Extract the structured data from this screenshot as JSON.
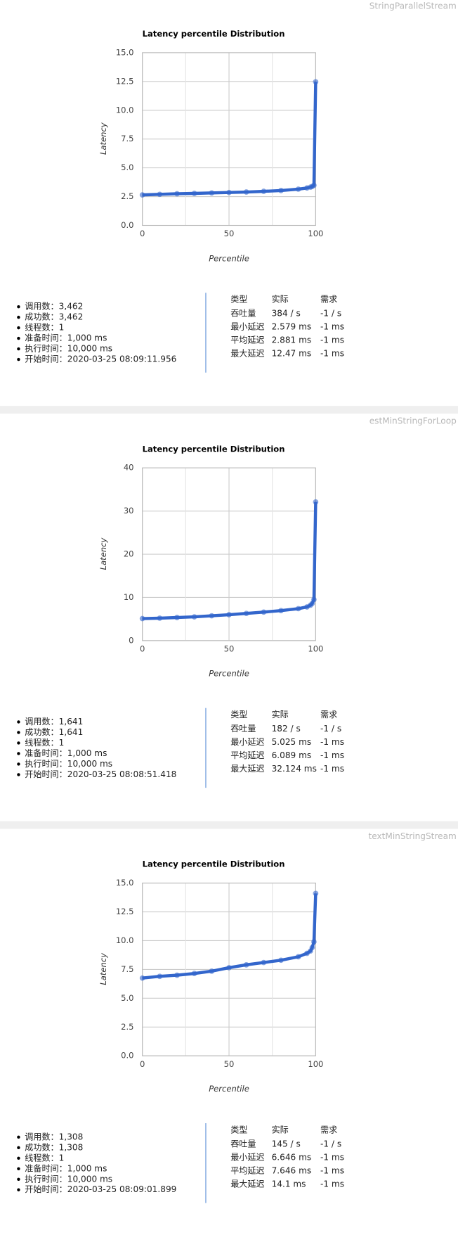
{
  "panels": [
    {
      "name": "StringParallelStream",
      "stats": [
        "调用数：3,462",
        "成功数：3,462",
        "线程数：1",
        "准备时间：1,000 ms",
        "执行时间：10,000 ms",
        "开始时间：2020-03-25 08:09:11.956"
      ],
      "table": {
        "header": [
          "类型",
          "实际",
          "需求"
        ],
        "rows": [
          [
            "吞吐量",
            "384 / s",
            "-1 / s"
          ],
          [
            "最小延迟",
            "2.579 ms",
            "-1 ms"
          ],
          [
            "平均延迟",
            "2.881 ms",
            "-1 ms"
          ],
          [
            "最大延迟",
            "12.47 ms",
            "-1 ms"
          ]
        ]
      }
    },
    {
      "name": "estMinStringForLoop",
      "stats": [
        "调用数：1,641",
        "成功数：1,641",
        "线程数：1",
        "准备时间：1,000 ms",
        "执行时间：10,000 ms",
        "开始时间：2020-03-25 08:08:51.418"
      ],
      "table": {
        "header": [
          "类型",
          "实际",
          "需求"
        ],
        "rows": [
          [
            "吞吐量",
            "182 / s",
            "-1 / s"
          ],
          [
            "最小延迟",
            "5.025 ms",
            "-1 ms"
          ],
          [
            "平均延迟",
            "6.089 ms",
            "-1 ms"
          ],
          [
            "最大延迟",
            "32.124 ms",
            "-1 ms"
          ]
        ]
      }
    },
    {
      "name": "textMinStringStream",
      "stats": [
        "调用数：1,308",
        "成功数：1,308",
        "线程数：1",
        "准备时间：1,000 ms",
        "执行时间：10,000 ms",
        "开始时间：2020-03-25 08:09:01.899"
      ],
      "table": {
        "header": [
          "类型",
          "实际",
          "需求"
        ],
        "rows": [
          [
            "吞吐量",
            "145 / s",
            "-1 / s"
          ],
          [
            "最小延迟",
            "6.646 ms",
            "-1 ms"
          ],
          [
            "平均延迟",
            "7.646 ms",
            "-1 ms"
          ],
          [
            "最大延迟",
            "14.1 ms",
            "-1 ms"
          ]
        ]
      }
    }
  ],
  "chart_data": [
    {
      "type": "line",
      "title": "Latency percentile Distribution",
      "x_label": "Percentile",
      "y_label": "Latency",
      "color": "#3366cc",
      "grid": true,
      "x": [
        0,
        10,
        20,
        30,
        40,
        50,
        60,
        70,
        80,
        90,
        95,
        97,
        98,
        99,
        100
      ],
      "values": [
        2.65,
        2.7,
        2.75,
        2.78,
        2.82,
        2.86,
        2.9,
        2.96,
        3.03,
        3.15,
        3.25,
        3.32,
        3.38,
        3.48,
        12.47
      ],
      "xlim": [
        0,
        100
      ],
      "xticks": [
        0,
        50,
        100
      ],
      "ylim": [
        0,
        15
      ],
      "yticks": [
        {
          "value": 0,
          "label": "0.0"
        },
        2.5,
        {
          "value": 5,
          "label": "5.0"
        },
        7.5,
        {
          "value": 10,
          "label": "10.0"
        },
        12.5,
        {
          "value": 15,
          "label": "15.0"
        }
      ]
    },
    {
      "type": "line",
      "title": "Latency percentile Distribution",
      "x_label": "Percentile",
      "y_label": "Latency",
      "color": "#3366cc",
      "grid": true,
      "x": [
        0,
        10,
        20,
        30,
        40,
        50,
        60,
        70,
        80,
        90,
        95,
        97,
        98,
        99,
        100
      ],
      "values": [
        5.1,
        5.2,
        5.35,
        5.5,
        5.75,
        6.0,
        6.3,
        6.6,
        6.95,
        7.4,
        7.8,
        8.2,
        8.6,
        9.5,
        32.1
      ],
      "xlim": [
        0,
        100
      ],
      "xticks": [
        0,
        50,
        100
      ],
      "ylim": [
        0,
        40
      ],
      "yticks": [
        0,
        10,
        20,
        30,
        40
      ]
    },
    {
      "type": "line",
      "title": "Latency percentile Distribution",
      "x_label": "Percentile",
      "y_label": "Latency",
      "color": "#3366cc",
      "grid": true,
      "x": [
        0,
        10,
        20,
        30,
        40,
        50,
        60,
        70,
        80,
        90,
        95,
        97,
        98,
        99,
        100
      ],
      "values": [
        6.75,
        6.9,
        7.0,
        7.15,
        7.35,
        7.65,
        7.9,
        8.1,
        8.3,
        8.6,
        8.9,
        9.1,
        9.4,
        9.9,
        14.1
      ],
      "xlim": [
        0,
        100
      ],
      "xticks": [
        0,
        50,
        100
      ],
      "ylim": [
        0,
        15
      ],
      "yticks": [
        {
          "value": 0,
          "label": "0.0"
        },
        2.5,
        {
          "value": 5,
          "label": "5.0"
        },
        7.5,
        {
          "value": 10,
          "label": "10.0"
        },
        12.5,
        {
          "value": 15,
          "label": "15.0"
        }
      ]
    }
  ]
}
